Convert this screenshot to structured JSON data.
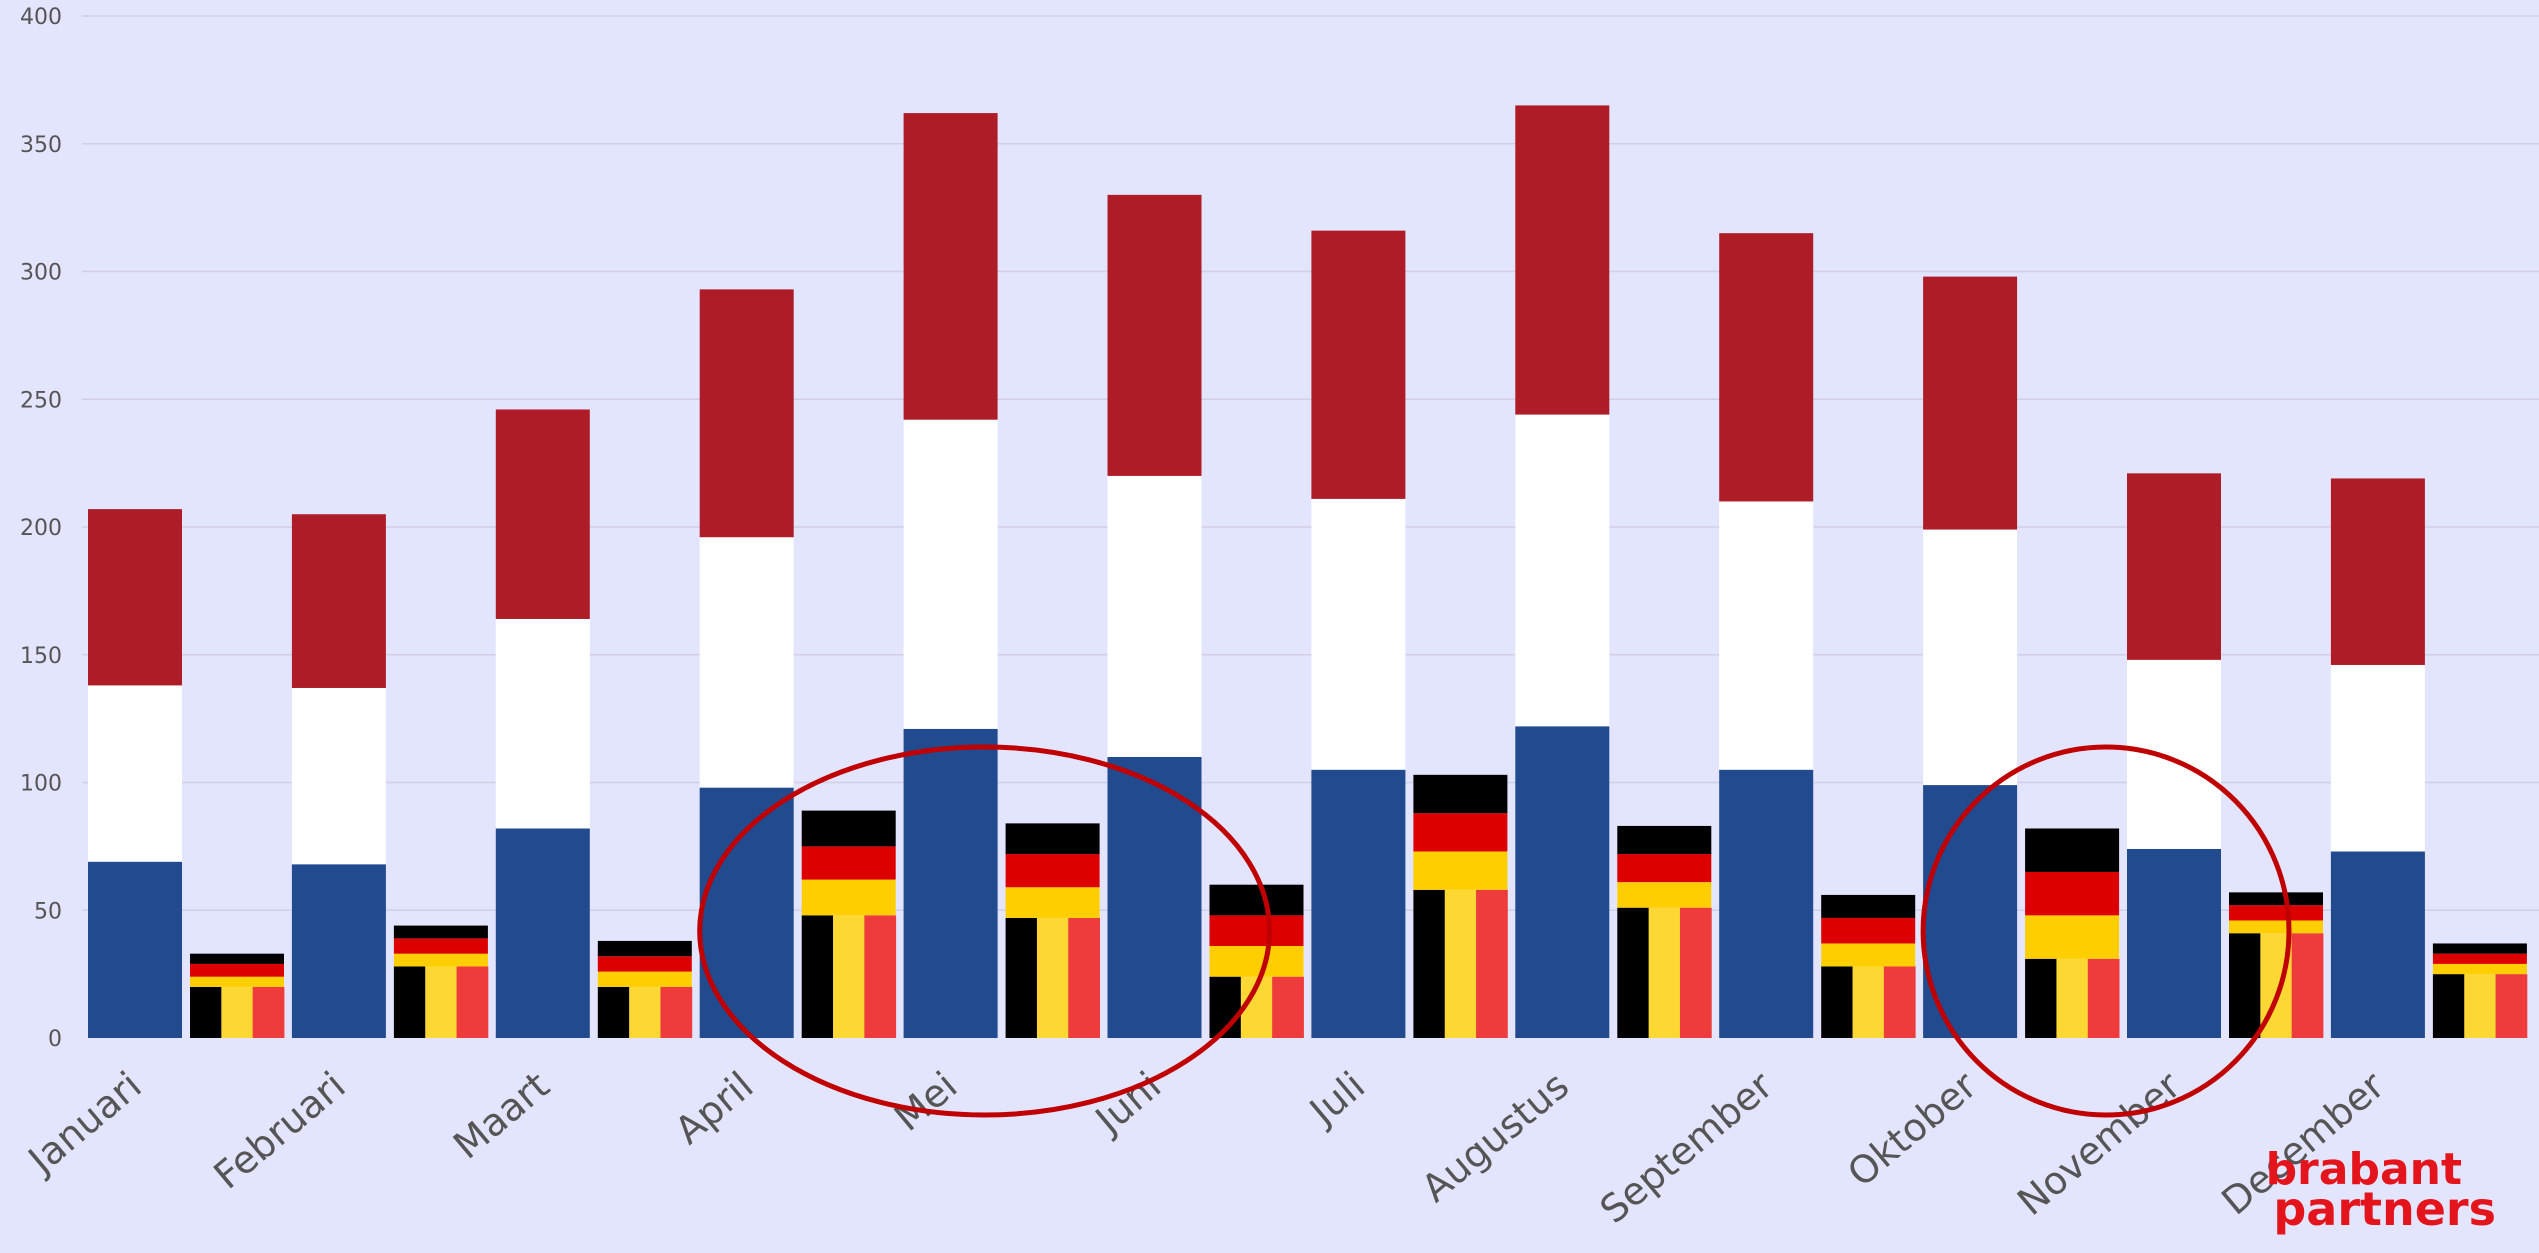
{
  "chart_data": {
    "type": "bar",
    "y_ticks": [
      "0",
      "50",
      "100",
      "150",
      "200",
      "250",
      "300",
      "350",
      "400"
    ],
    "ylim": [
      0,
      400
    ],
    "grid": true,
    "categories": [
      "Januari",
      "Februari",
      "Maart",
      "April",
      "Mei",
      "Juni",
      "Juli",
      "Augustus",
      "September",
      "Oktober",
      "November",
      "December"
    ],
    "stack_nl": [
      {
        "color": "#224a8e",
        "values": [
          69,
          68,
          82,
          98,
          121,
          110,
          105,
          122,
          105,
          99,
          74,
          73
        ]
      },
      {
        "color": "#ffffff",
        "values": [
          69,
          69,
          82,
          98,
          121,
          110,
          106,
          122,
          105,
          100,
          74,
          73
        ]
      },
      {
        "color": "#ae1c28",
        "values": [
          69,
          68,
          82,
          97,
          120,
          110,
          105,
          121,
          105,
          99,
          73,
          73
        ]
      }
    ],
    "stack_de": [
      {
        "color": "#ffce00",
        "values": [
          4,
          5,
          6,
          14,
          12,
          12,
          15,
          10,
          9,
          17,
          5,
          4
        ]
      },
      {
        "color": "#dd0000",
        "values": [
          5,
          6,
          6,
          13,
          13,
          12,
          15,
          11,
          10,
          17,
          6,
          4
        ]
      },
      {
        "color": "#000000",
        "values": [
          4,
          5,
          6,
          14,
          12,
          12,
          15,
          11,
          9,
          17,
          5,
          4
        ]
      }
    ],
    "de_base": {
      "values": [
        20,
        28,
        20,
        48,
        47,
        24,
        58,
        51,
        28,
        31,
        41,
        25
      ],
      "colors": [
        "#000000",
        "#fdd835",
        "#ee3b3b"
      ]
    },
    "highlights": [
      {
        "from": "April",
        "to": "Juni",
        "color": "#c00000"
      },
      {
        "from": "Oktober",
        "to": "November",
        "color": "#c00000"
      }
    ]
  },
  "logo": {
    "line1": "brabant",
    "line2": "partners",
    "color": "#e3141b"
  }
}
